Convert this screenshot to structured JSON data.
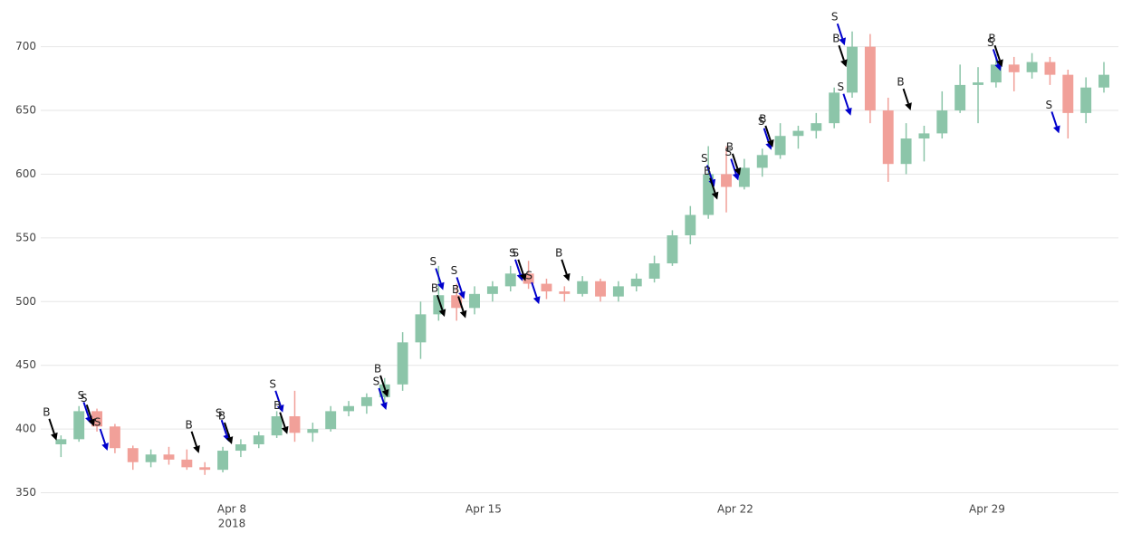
{
  "chart_data": {
    "type": "candlestick",
    "x": [
      "2018-04-03 06:00",
      "2018-04-03 18:00",
      "2018-04-04 06:00",
      "2018-04-04 18:00",
      "2018-04-05 06:00",
      "2018-04-05 18:00",
      "2018-04-06 06:00",
      "2018-04-06 18:00",
      "2018-04-07 06:00",
      "2018-04-07 18:00",
      "2018-04-08 06:00",
      "2018-04-08 18:00",
      "2018-04-09 06:00",
      "2018-04-09 18:00",
      "2018-04-10 06:00",
      "2018-04-10 18:00",
      "2018-04-11 06:00",
      "2018-04-11 18:00",
      "2018-04-12 06:00",
      "2018-04-12 18:00",
      "2018-04-13 06:00",
      "2018-04-13 18:00",
      "2018-04-14 06:00",
      "2018-04-14 18:00",
      "2018-04-15 06:00",
      "2018-04-15 18:00",
      "2018-04-16 06:00",
      "2018-04-16 18:00",
      "2018-04-17 06:00",
      "2018-04-17 18:00",
      "2018-04-18 06:00",
      "2018-04-18 18:00",
      "2018-04-19 06:00",
      "2018-04-19 18:00",
      "2018-04-20 06:00",
      "2018-04-20 18:00",
      "2018-04-21 06:00",
      "2018-04-21 18:00",
      "2018-04-22 06:00",
      "2018-04-22 18:00",
      "2018-04-23 06:00",
      "2018-04-23 18:00",
      "2018-04-24 06:00",
      "2018-04-24 18:00",
      "2018-04-25 06:00",
      "2018-04-25 18:00",
      "2018-04-26 06:00",
      "2018-04-26 18:00",
      "2018-04-27 06:00",
      "2018-04-27 18:00",
      "2018-04-28 06:00",
      "2018-04-28 18:00",
      "2018-04-29 06:00",
      "2018-04-29 18:00",
      "2018-04-30 06:00",
      "2018-04-30 18:00",
      "2018-05-01 06:00",
      "2018-05-01 18:00",
      "2018-05-02 06:00"
    ],
    "open": [
      388,
      392,
      414,
      402,
      385,
      374,
      380,
      376,
      370,
      368,
      383,
      388,
      395,
      410,
      397,
      400,
      414,
      418,
      425,
      435,
      468,
      490,
      505,
      495,
      506,
      512,
      522,
      514,
      508,
      506,
      516,
      504,
      512,
      518,
      530,
      552,
      568,
      600,
      590,
      605,
      615,
      630,
      634,
      640,
      664,
      700,
      650,
      608,
      628,
      632,
      650,
      670,
      672,
      686,
      680,
      688,
      678,
      648,
      668
    ],
    "high": [
      395,
      418,
      416,
      404,
      387,
      384,
      386,
      384,
      374,
      386,
      392,
      398,
      414,
      430,
      405,
      418,
      422,
      428,
      440,
      476,
      500,
      528,
      514,
      512,
      516,
      528,
      532,
      518,
      512,
      520,
      518,
      516,
      522,
      536,
      556,
      575,
      622,
      622,
      612,
      620,
      640,
      638,
      648,
      668,
      712,
      710,
      660,
      640,
      638,
      665,
      686,
      684,
      694,
      692,
      695,
      692,
      682,
      676,
      688
    ],
    "low": [
      378,
      390,
      398,
      381,
      368,
      370,
      372,
      368,
      364,
      366,
      378,
      385,
      393,
      390,
      390,
      398,
      410,
      412,
      418,
      430,
      455,
      485,
      485,
      490,
      500,
      508,
      510,
      502,
      500,
      504,
      500,
      500,
      508,
      515,
      528,
      545,
      565,
      570,
      588,
      598,
      612,
      620,
      628,
      636,
      660,
      640,
      594,
      600,
      610,
      628,
      648,
      640,
      668,
      665,
      675,
      670,
      628,
      640,
      664
    ],
    "close": [
      392,
      414,
      402,
      385,
      374,
      380,
      376,
      370,
      368,
      383,
      388,
      395,
      410,
      397,
      400,
      414,
      418,
      425,
      435,
      468,
      490,
      505,
      495,
      506,
      512,
      522,
      514,
      508,
      506,
      516,
      504,
      512,
      518,
      530,
      552,
      568,
      600,
      590,
      605,
      615,
      630,
      634,
      640,
      664,
      700,
      650,
      608,
      628,
      632,
      650,
      670,
      672,
      686,
      680,
      688,
      678,
      648,
      668,
      678
    ],
    "increasing_color": "#8cc5a9",
    "decreasing_color": "#f1a099",
    "xlim": [
      "2018-04-02 16:30",
      "2018-05-02 15:40"
    ],
    "xticks": [
      {
        "value": "2018-04-08",
        "label": "Apr 8"
      },
      {
        "value": "2018-04-15",
        "label": "Apr 15"
      },
      {
        "value": "2018-04-22",
        "label": "Apr 22"
      },
      {
        "value": "2018-04-29",
        "label": "Apr 29"
      }
    ],
    "xtick_year": "2018",
    "ylim": [
      339,
      731
    ],
    "yticks": [
      350,
      400,
      450,
      500,
      550,
      600,
      650,
      700
    ],
    "grid": true,
    "annotations": [
      {
        "text": "B",
        "x": "2018-04-03 03:00",
        "y": 391,
        "color": "#000000"
      },
      {
        "text": "S",
        "x": "2018-04-04 02:00",
        "y": 404,
        "color": "#0000cc"
      },
      {
        "text": "S",
        "x": "2018-04-04 04:00",
        "y": 402,
        "color": "#000000"
      },
      {
        "text": "S",
        "x": "2018-04-04 13:00",
        "y": 383,
        "color": "#0000cc"
      },
      {
        "text": "B",
        "x": "2018-04-07 02:00",
        "y": 381,
        "color": "#000000"
      },
      {
        "text": "S",
        "x": "2018-04-07 22:00",
        "y": 390,
        "color": "#0000cc"
      },
      {
        "text": "B",
        "x": "2018-04-08 00:00",
        "y": 388,
        "color": "#000000"
      },
      {
        "text": "S",
        "x": "2018-04-09 10:00",
        "y": 413,
        "color": "#0000cc"
      },
      {
        "text": "B",
        "x": "2018-04-09 13:00",
        "y": 396,
        "color": "#000000"
      },
      {
        "text": "B",
        "x": "2018-04-12 08:00",
        "y": 425,
        "color": "#000000"
      },
      {
        "text": "S",
        "x": "2018-04-12 07:00",
        "y": 415,
        "color": "#0000cc"
      },
      {
        "text": "S",
        "x": "2018-04-13 21:00",
        "y": 509,
        "color": "#0000cc"
      },
      {
        "text": "B",
        "x": "2018-04-13 22:00",
        "y": 488,
        "color": "#000000"
      },
      {
        "text": "S",
        "x": "2018-04-14 11:00",
        "y": 502,
        "color": "#0000cc"
      },
      {
        "text": "B",
        "x": "2018-04-14 12:00",
        "y": 487,
        "color": "#000000"
      },
      {
        "text": "S",
        "x": "2018-04-16 02:00",
        "y": 516,
        "color": "#0000cc"
      },
      {
        "text": "S",
        "x": "2018-04-16 04:00",
        "y": 516,
        "color": "#000000"
      },
      {
        "text": "S",
        "x": "2018-04-16 13:00",
        "y": 498,
        "color": "#0000cc"
      },
      {
        "text": "B",
        "x": "2018-04-17 09:00",
        "y": 516,
        "color": "#000000"
      },
      {
        "text": "S",
        "x": "2018-04-21 10:00",
        "y": 590,
        "color": "#0000cc"
      },
      {
        "text": "B",
        "x": "2018-04-21 12:00",
        "y": 580,
        "color": "#000000"
      },
      {
        "text": "S",
        "x": "2018-04-22 02:00",
        "y": 595,
        "color": "#0000cc"
      },
      {
        "text": "B",
        "x": "2018-04-22 03:00",
        "y": 599,
        "color": "#000000"
      },
      {
        "text": "S",
        "x": "2018-04-23 00:00",
        "y": 619,
        "color": "#0000cc"
      },
      {
        "text": "B",
        "x": "2018-04-23 01:00",
        "y": 621,
        "color": "#000000"
      },
      {
        "text": "S",
        "x": "2018-04-25 01:00",
        "y": 701,
        "color": "#0000cc"
      },
      {
        "text": "B",
        "x": "2018-04-25 02:00",
        "y": 684,
        "color": "#000000"
      },
      {
        "text": "S",
        "x": "2018-04-25 05:00",
        "y": 646,
        "color": "#0000cc"
      },
      {
        "text": "B",
        "x": "2018-04-26 21:00",
        "y": 650,
        "color": "#000000"
      },
      {
        "text": "S",
        "x": "2018-04-29 09:00",
        "y": 681,
        "color": "#0000cc"
      },
      {
        "text": "B",
        "x": "2018-04-29 10:00",
        "y": 684,
        "color": "#000000"
      },
      {
        "text": "S",
        "x": "2018-05-01 00:00",
        "y": 632,
        "color": "#0000cc"
      }
    ]
  }
}
